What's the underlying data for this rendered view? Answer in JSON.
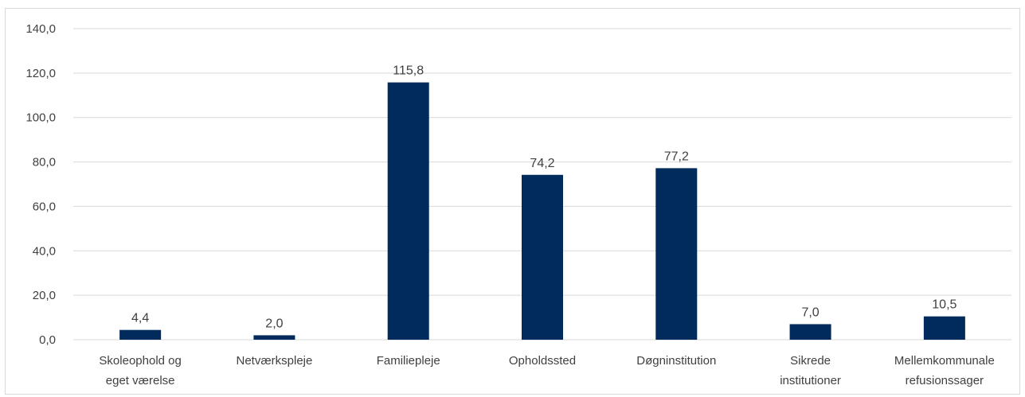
{
  "chart_data": {
    "type": "bar",
    "title": "",
    "xlabel": "",
    "ylabel": "",
    "categories": [
      [
        "Skoleophold og",
        "eget værelse"
      ],
      [
        "Netværkspleje"
      ],
      [
        "Familiepleje"
      ],
      [
        "Opholdssted"
      ],
      [
        "Døgninstitution"
      ],
      [
        "Sikrede",
        "institutioner"
      ],
      [
        "Mellemkommunale",
        "refusionssager"
      ]
    ],
    "values": [
      4.4,
      2.0,
      115.8,
      74.2,
      77.2,
      7.0,
      10.5
    ],
    "data_labels": [
      "4,4",
      "2,0",
      "115,8",
      "74,2",
      "77,2",
      "7,0",
      "10,5"
    ],
    "ylim": [
      0,
      140
    ],
    "yticks": [
      0,
      20,
      40,
      60,
      80,
      100,
      120,
      140
    ],
    "ytick_labels": [
      "0,0",
      "20,0",
      "40,0",
      "60,0",
      "80,0",
      "100,0",
      "120,0",
      "140,0"
    ],
    "grid": true,
    "legend": "none",
    "bar_color": "#002b5c"
  }
}
